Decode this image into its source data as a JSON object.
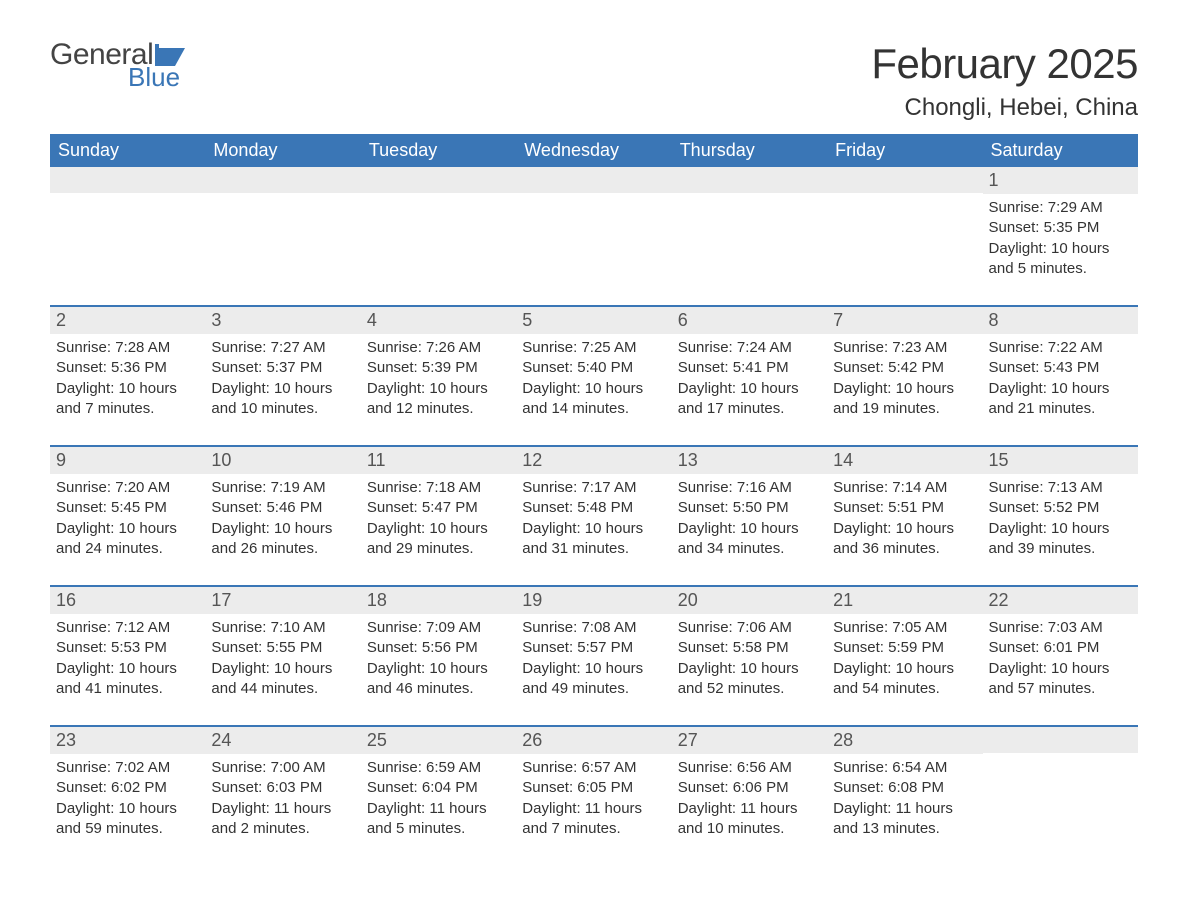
{
  "logo": {
    "text1": "General",
    "text2": "Blue",
    "shape_color": "#3a76b6"
  },
  "title": "February 2025",
  "location": "Chongli, Hebei, China",
  "colors": {
    "header_bg": "#3a76b6",
    "header_text": "#ffffff",
    "daynum_bg": "#ececec",
    "week_border": "#3a76b6",
    "body_text": "#333333",
    "page_bg": "#ffffff"
  },
  "typography": {
    "title_fontsize": 42,
    "location_fontsize": 24,
    "dayhead_fontsize": 18,
    "daynum_fontsize": 18,
    "body_fontsize": 15,
    "font_family": "Arial"
  },
  "day_headers": [
    "Sunday",
    "Monday",
    "Tuesday",
    "Wednesday",
    "Thursday",
    "Friday",
    "Saturday"
  ],
  "weeks": [
    [
      {
        "empty": true
      },
      {
        "empty": true
      },
      {
        "empty": true
      },
      {
        "empty": true
      },
      {
        "empty": true
      },
      {
        "empty": true
      },
      {
        "day": "1",
        "sunrise": "Sunrise: 7:29 AM",
        "sunset": "Sunset: 5:35 PM",
        "dl1": "Daylight: 10 hours",
        "dl2": "and 5 minutes."
      }
    ],
    [
      {
        "day": "2",
        "sunrise": "Sunrise: 7:28 AM",
        "sunset": "Sunset: 5:36 PM",
        "dl1": "Daylight: 10 hours",
        "dl2": "and 7 minutes."
      },
      {
        "day": "3",
        "sunrise": "Sunrise: 7:27 AM",
        "sunset": "Sunset: 5:37 PM",
        "dl1": "Daylight: 10 hours",
        "dl2": "and 10 minutes."
      },
      {
        "day": "4",
        "sunrise": "Sunrise: 7:26 AM",
        "sunset": "Sunset: 5:39 PM",
        "dl1": "Daylight: 10 hours",
        "dl2": "and 12 minutes."
      },
      {
        "day": "5",
        "sunrise": "Sunrise: 7:25 AM",
        "sunset": "Sunset: 5:40 PM",
        "dl1": "Daylight: 10 hours",
        "dl2": "and 14 minutes."
      },
      {
        "day": "6",
        "sunrise": "Sunrise: 7:24 AM",
        "sunset": "Sunset: 5:41 PM",
        "dl1": "Daylight: 10 hours",
        "dl2": "and 17 minutes."
      },
      {
        "day": "7",
        "sunrise": "Sunrise: 7:23 AM",
        "sunset": "Sunset: 5:42 PM",
        "dl1": "Daylight: 10 hours",
        "dl2": "and 19 minutes."
      },
      {
        "day": "8",
        "sunrise": "Sunrise: 7:22 AM",
        "sunset": "Sunset: 5:43 PM",
        "dl1": "Daylight: 10 hours",
        "dl2": "and 21 minutes."
      }
    ],
    [
      {
        "day": "9",
        "sunrise": "Sunrise: 7:20 AM",
        "sunset": "Sunset: 5:45 PM",
        "dl1": "Daylight: 10 hours",
        "dl2": "and 24 minutes."
      },
      {
        "day": "10",
        "sunrise": "Sunrise: 7:19 AM",
        "sunset": "Sunset: 5:46 PM",
        "dl1": "Daylight: 10 hours",
        "dl2": "and 26 minutes."
      },
      {
        "day": "11",
        "sunrise": "Sunrise: 7:18 AM",
        "sunset": "Sunset: 5:47 PM",
        "dl1": "Daylight: 10 hours",
        "dl2": "and 29 minutes."
      },
      {
        "day": "12",
        "sunrise": "Sunrise: 7:17 AM",
        "sunset": "Sunset: 5:48 PM",
        "dl1": "Daylight: 10 hours",
        "dl2": "and 31 minutes."
      },
      {
        "day": "13",
        "sunrise": "Sunrise: 7:16 AM",
        "sunset": "Sunset: 5:50 PM",
        "dl1": "Daylight: 10 hours",
        "dl2": "and 34 minutes."
      },
      {
        "day": "14",
        "sunrise": "Sunrise: 7:14 AM",
        "sunset": "Sunset: 5:51 PM",
        "dl1": "Daylight: 10 hours",
        "dl2": "and 36 minutes."
      },
      {
        "day": "15",
        "sunrise": "Sunrise: 7:13 AM",
        "sunset": "Sunset: 5:52 PM",
        "dl1": "Daylight: 10 hours",
        "dl2": "and 39 minutes."
      }
    ],
    [
      {
        "day": "16",
        "sunrise": "Sunrise: 7:12 AM",
        "sunset": "Sunset: 5:53 PM",
        "dl1": "Daylight: 10 hours",
        "dl2": "and 41 minutes."
      },
      {
        "day": "17",
        "sunrise": "Sunrise: 7:10 AM",
        "sunset": "Sunset: 5:55 PM",
        "dl1": "Daylight: 10 hours",
        "dl2": "and 44 minutes."
      },
      {
        "day": "18",
        "sunrise": "Sunrise: 7:09 AM",
        "sunset": "Sunset: 5:56 PM",
        "dl1": "Daylight: 10 hours",
        "dl2": "and 46 minutes."
      },
      {
        "day": "19",
        "sunrise": "Sunrise: 7:08 AM",
        "sunset": "Sunset: 5:57 PM",
        "dl1": "Daylight: 10 hours",
        "dl2": "and 49 minutes."
      },
      {
        "day": "20",
        "sunrise": "Sunrise: 7:06 AM",
        "sunset": "Sunset: 5:58 PM",
        "dl1": "Daylight: 10 hours",
        "dl2": "and 52 minutes."
      },
      {
        "day": "21",
        "sunrise": "Sunrise: 7:05 AM",
        "sunset": "Sunset: 5:59 PM",
        "dl1": "Daylight: 10 hours",
        "dl2": "and 54 minutes."
      },
      {
        "day": "22",
        "sunrise": "Sunrise: 7:03 AM",
        "sunset": "Sunset: 6:01 PM",
        "dl1": "Daylight: 10 hours",
        "dl2": "and 57 minutes."
      }
    ],
    [
      {
        "day": "23",
        "sunrise": "Sunrise: 7:02 AM",
        "sunset": "Sunset: 6:02 PM",
        "dl1": "Daylight: 10 hours",
        "dl2": "and 59 minutes."
      },
      {
        "day": "24",
        "sunrise": "Sunrise: 7:00 AM",
        "sunset": "Sunset: 6:03 PM",
        "dl1": "Daylight: 11 hours",
        "dl2": "and 2 minutes."
      },
      {
        "day": "25",
        "sunrise": "Sunrise: 6:59 AM",
        "sunset": "Sunset: 6:04 PM",
        "dl1": "Daylight: 11 hours",
        "dl2": "and 5 minutes."
      },
      {
        "day": "26",
        "sunrise": "Sunrise: 6:57 AM",
        "sunset": "Sunset: 6:05 PM",
        "dl1": "Daylight: 11 hours",
        "dl2": "and 7 minutes."
      },
      {
        "day": "27",
        "sunrise": "Sunrise: 6:56 AM",
        "sunset": "Sunset: 6:06 PM",
        "dl1": "Daylight: 11 hours",
        "dl2": "and 10 minutes."
      },
      {
        "day": "28",
        "sunrise": "Sunrise: 6:54 AM",
        "sunset": "Sunset: 6:08 PM",
        "dl1": "Daylight: 11 hours",
        "dl2": "and 13 minutes."
      },
      {
        "empty": true
      }
    ]
  ]
}
